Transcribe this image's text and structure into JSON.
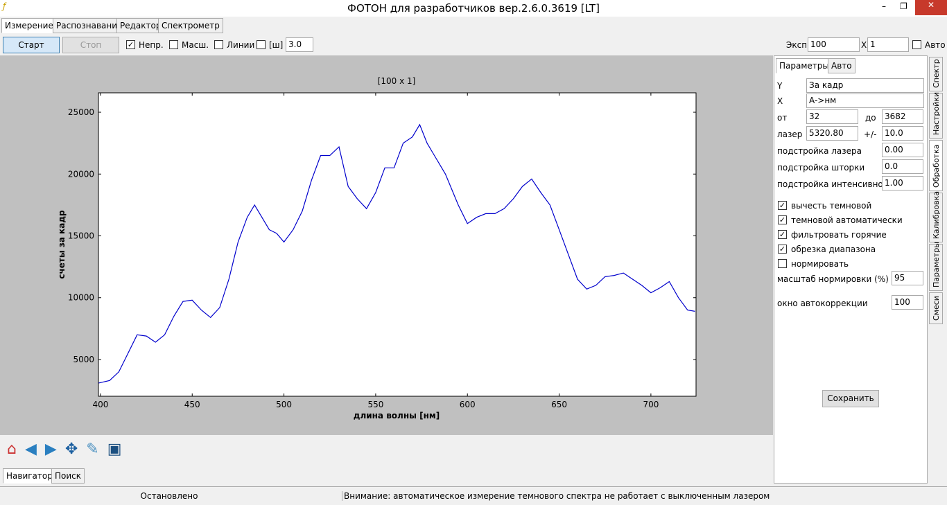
{
  "window": {
    "title": "ФОТОН для разработчиков вер.2.6.0.3619 [LT]"
  },
  "tabs": [
    "Измерение",
    "Распознавание",
    "Редактор",
    "Спектрометр"
  ],
  "toolbar": {
    "start": "Старт",
    "stop": "Стоп",
    "continuous": {
      "label": "Непр.",
      "checked": true
    },
    "scale": {
      "label": "Масш.",
      "checked": false
    },
    "lines": {
      "label": "Линии",
      "checked": false
    },
    "w": {
      "label": "[ш]",
      "checked": false
    },
    "w_value": "3.0",
    "exp_label": "Эксп.",
    "exp_value": "100",
    "x_label": "X",
    "x_value": "1",
    "auto": {
      "label": "Авто",
      "checked": false
    }
  },
  "chart_data": {
    "type": "line",
    "title": "[100 x 1]",
    "xlabel": "длина волны [нм]",
    "ylabel": "счеты за кадр",
    "color": "#0000cc",
    "x": [
      399,
      405,
      410,
      415,
      420,
      425,
      430,
      435,
      440,
      445,
      450,
      455,
      460,
      465,
      470,
      475,
      480,
      484,
      488,
      492,
      496,
      500,
      505,
      510,
      515,
      520,
      525,
      530,
      535,
      540,
      545,
      550,
      555,
      560,
      565,
      570,
      574,
      578,
      582,
      588,
      595,
      600,
      605,
      610,
      615,
      620,
      625,
      630,
      635,
      640,
      645,
      650,
      655,
      660,
      665,
      670,
      675,
      680,
      685,
      690,
      695,
      700,
      705,
      710,
      715,
      720,
      724
    ],
    "values": [
      3100,
      3300,
      4000,
      5500,
      7000,
      6900,
      6400,
      7000,
      8500,
      9700,
      9800,
      9000,
      8400,
      9200,
      11500,
      14500,
      16500,
      17500,
      16500,
      15500,
      15200,
      14500,
      15500,
      17000,
      19500,
      21500,
      21500,
      22200,
      19000,
      18000,
      17200,
      18500,
      20500,
      20500,
      22500,
      23000,
      24000,
      22500,
      21500,
      20000,
      17500,
      16000,
      16500,
      16800,
      16800,
      17200,
      18000,
      19000,
      19600,
      18500,
      17500,
      15500,
      13500,
      11500,
      10700,
      11000,
      11700,
      11800,
      12000,
      11500,
      11000,
      10400,
      10800,
      11300,
      10000,
      9000,
      8900
    ],
    "xlim": [
      398.9,
      724.6
    ],
    "ylim": [
      2030,
      26570
    ],
    "xticks": [
      400,
      450,
      500,
      550,
      600,
      650,
      700
    ],
    "yticks": [
      5000,
      10000,
      15000,
      20000,
      25000
    ]
  },
  "navigator": {
    "tabs": [
      "Навигатор",
      "Поиск"
    ]
  },
  "panel": {
    "tabs": [
      "Параметры",
      "Авто"
    ],
    "y_label": "Y",
    "y_value": "За кадр",
    "x_label": "X",
    "x_value": "A->нм",
    "from_label": "от",
    "from_value": "32",
    "to_label": "до",
    "to_value": "3682",
    "laser_label": "лазер",
    "laser_value": "5320.80",
    "pm_label": "+/-",
    "pm_value": "10.0",
    "rows": [
      {
        "label": "подстройка лазера",
        "value": "0.00"
      },
      {
        "label": "подстройка шторки",
        "value": "0.0"
      },
      {
        "label": "подстройка интенсивности",
        "value": "1.00"
      }
    ],
    "checks": [
      {
        "label": "вычесть темновой",
        "checked": true
      },
      {
        "label": "темновой автоматически",
        "checked": true
      },
      {
        "label": "фильтровать горячие",
        "checked": true
      },
      {
        "label": "обрезка диапазона",
        "checked": true
      },
      {
        "label": "нормировать",
        "checked": false
      }
    ],
    "norm_label": "масштаб нормировки (%)",
    "norm_value": "95",
    "window_label": "окно автокоррекции",
    "window_value": "100",
    "save": "Сохранить"
  },
  "side_tabs": [
    "Спектр",
    "Настройки",
    "Обработка",
    "Калибровка",
    "Параметры",
    "Смеси"
  ],
  "status": {
    "state": "Остановлено",
    "message": "Внимание: автоматическое измерение темнового спектра не работает с выключенным лазером"
  }
}
